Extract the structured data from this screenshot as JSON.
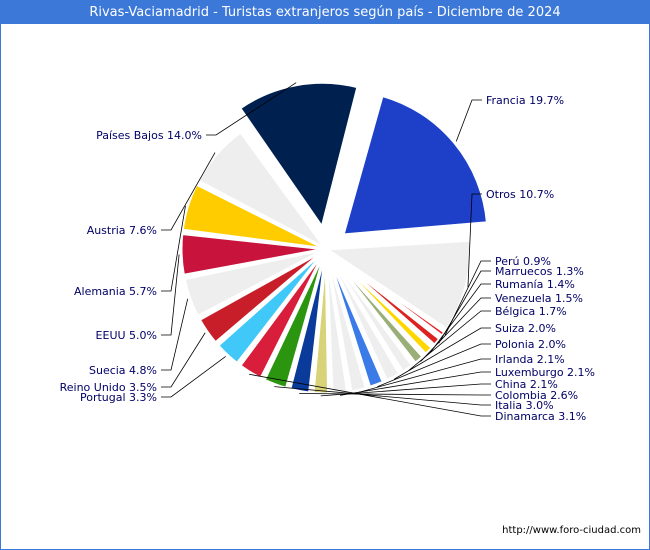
{
  "header": {
    "title": "Rivas-Vaciamadrid - Turistas extranjeros según país - Diciembre de 2024"
  },
  "footer": {
    "credit": "http://www.foro-ciudad.com"
  },
  "chart_data": {
    "type": "pie",
    "title": "Rivas-Vaciamadrid - Turistas extranjeros según país - Diciembre de 2024",
    "slices": [
      {
        "label": "Francia",
        "display": "Francia 19.7%",
        "value": 19.7,
        "color": "#1e40c8",
        "exploded": true
      },
      {
        "label": "Otros",
        "display": "Otros 10.7%",
        "value": 10.7,
        "color": "#eeeeee",
        "exploded": false
      },
      {
        "label": "Perú",
        "display": "Perú 0.9%",
        "value": 0.9,
        "color": "#e8232a",
        "exploded": false
      },
      {
        "label": "Marruecos",
        "display": "Marruecos 1.3%",
        "value": 1.3,
        "color": "#dd2222",
        "exploded": false
      },
      {
        "label": "Rumanía",
        "display": "Rumanía 1.4%",
        "value": 1.4,
        "color": "#ffd700",
        "exploded": false
      },
      {
        "label": "Venezuela",
        "display": "Venezuela 1.5%",
        "value": 1.5,
        "color": "#9aaf78",
        "exploded": false
      },
      {
        "label": "Bélgica",
        "display": "Bélgica 1.7%",
        "value": 1.7,
        "color": "#eeeeee",
        "exploded": false
      },
      {
        "label": "Suiza",
        "display": "Suiza 2.0%",
        "value": 2.0,
        "color": "#eeeeee",
        "exploded": false
      },
      {
        "label": "Polonia",
        "display": "Polonia 2.0%",
        "value": 2.0,
        "color": "#3a7be8",
        "exploded": false
      },
      {
        "label": "Irlanda",
        "display": "Irlanda 2.1%",
        "value": 2.1,
        "color": "#eeeeee",
        "exploded": false
      },
      {
        "label": "Luxemburgo",
        "display": "Luxemburgo 2.1%",
        "value": 2.1,
        "color": "#eeeeee",
        "exploded": false
      },
      {
        "label": "China",
        "display": "China 2.1%",
        "value": 2.1,
        "color": "#d8d278",
        "exploded": false
      },
      {
        "label": "Colombia",
        "display": "Colombia 2.6%",
        "value": 2.6,
        "color": "#0a3a9a",
        "exploded": false
      },
      {
        "label": "Italia",
        "display": "Italia 3.0%",
        "value": 3.0,
        "color": "#2b9510",
        "exploded": false
      },
      {
        "label": "Dinamarca",
        "display": "Dinamarca 3.1%",
        "value": 3.1,
        "color": "#d81e3a",
        "exploded": false
      },
      {
        "label": "Portugal",
        "display": "Portugal 3.3%",
        "value": 3.3,
        "color": "#40c8f8",
        "exploded": false
      },
      {
        "label": "Reino Unido",
        "display": "Reino Unido 3.5%",
        "value": 3.5,
        "color": "#c81e2a",
        "exploded": false
      },
      {
        "label": "Suecia",
        "display": "Suecia 4.8%",
        "value": 4.8,
        "color": "#eeeeee",
        "exploded": false
      },
      {
        "label": "EEUU",
        "display": "EEUU 5.0%",
        "value": 5.0,
        "color": "#c8143c",
        "exploded": false
      },
      {
        "label": "Alemania",
        "display": "Alemania 5.7%",
        "value": 5.7,
        "color": "#ffcc00",
        "exploded": false
      },
      {
        "label": "Austria",
        "display": "Austria 7.6%",
        "value": 7.6,
        "color": "#eeeeee",
        "exploded": false
      },
      {
        "label": "Países Bajos",
        "display": "Países Bajos 14.0%",
        "value": 14.0,
        "color": "#002050",
        "exploded": true
      }
    ]
  }
}
